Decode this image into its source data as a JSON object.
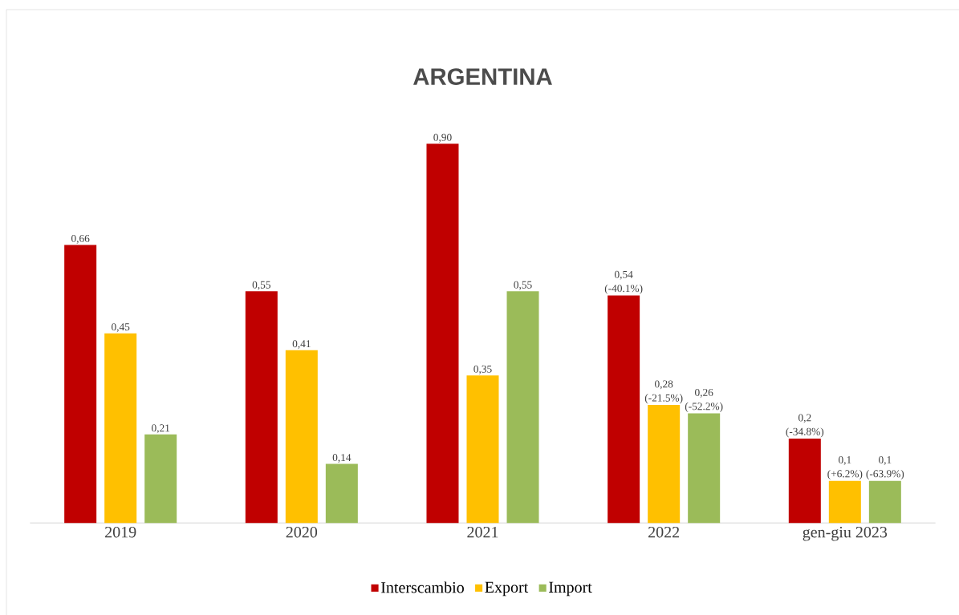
{
  "chart_data": {
    "type": "bar",
    "title": "ARGENTINA",
    "categories": [
      "2019",
      "2020",
      "2021",
      "2022",
      "gen-giu 2023"
    ],
    "series": [
      {
        "name": "Interscambio",
        "color": "#c00000",
        "values": [
          0.66,
          0.55,
          0.9,
          0.54,
          0.2
        ],
        "value_labels": [
          "0,66",
          "0,55",
          "0,90",
          "0,54 (-40.1%)",
          "0,2 (-34.8%)"
        ]
      },
      {
        "name": "Export",
        "color": "#ffc000",
        "values": [
          0.45,
          0.41,
          0.35,
          0.28,
          0.1
        ],
        "value_labels": [
          "0,45",
          "0,41",
          "0,35",
          "0,28 (-21.5%)",
          "0,1 (+6.2%)"
        ]
      },
      {
        "name": "Import",
        "color": "#9bbb59",
        "values": [
          0.21,
          0.14,
          0.55,
          0.26,
          0.1
        ],
        "value_labels": [
          "0,21",
          "0,14",
          "0,55",
          "0,26 (-52.2%)",
          "0,1 (-63.9%)"
        ]
      }
    ],
    "legend": "bottom"
  }
}
